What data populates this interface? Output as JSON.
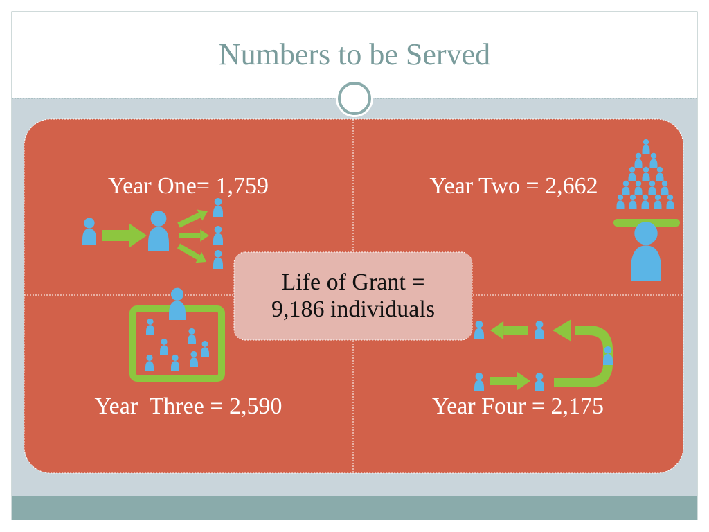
{
  "title": "Numbers to be Served",
  "quadrants": [
    {
      "label": "Year One= 1,759"
    },
    {
      "label": "Year Two = 2,662"
    },
    {
      "label": "Year  Three = 2,590"
    },
    {
      "label": "Year Four = 2,175"
    }
  ],
  "center": {
    "lines": [
      "Life of Grant =",
      "9,186 individuals"
    ]
  }
}
